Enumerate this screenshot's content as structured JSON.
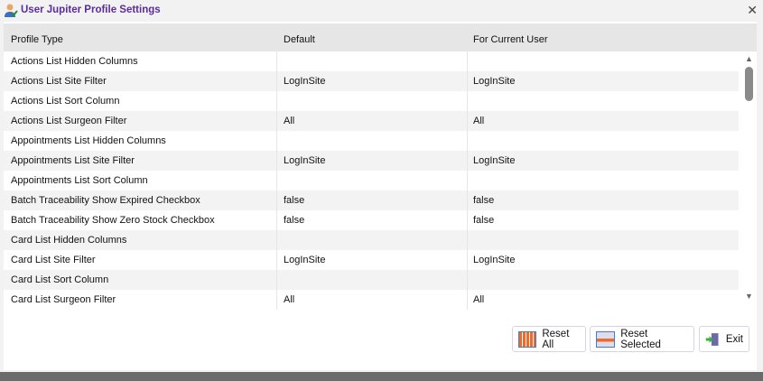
{
  "window": {
    "title": "User Jupiter Profile Settings",
    "close_icon": "close-icon"
  },
  "table": {
    "headers": [
      "Profile Type",
      "Default",
      "For Current User"
    ],
    "rows": [
      [
        "Actions List Hidden Columns",
        "",
        ""
      ],
      [
        "Actions List Site Filter",
        "LogInSite",
        "LogInSite"
      ],
      [
        "Actions List Sort Column",
        "",
        ""
      ],
      [
        "Actions List Surgeon Filter",
        "All",
        "All"
      ],
      [
        "Appointments List Hidden Columns",
        "",
        ""
      ],
      [
        "Appointments List Site Filter",
        "LogInSite",
        "LogInSite"
      ],
      [
        "Appointments List Sort Column",
        "",
        ""
      ],
      [
        "Batch Traceability Show Expired Checkbox",
        "false",
        "false"
      ],
      [
        "Batch Traceability Show Zero Stock Checkbox",
        "false",
        "false"
      ],
      [
        "Card List Hidden Columns",
        "",
        ""
      ],
      [
        "Card List Site Filter",
        "LogInSite",
        "LogInSite"
      ],
      [
        "Card List Sort Column",
        "",
        ""
      ],
      [
        "Card List Surgeon Filter",
        "All",
        "All"
      ]
    ]
  },
  "buttons": {
    "reset_all": "Reset All",
    "reset_selected": "Reset Selected",
    "exit": "Exit"
  },
  "colors": {
    "title": "#5b2c9c"
  }
}
